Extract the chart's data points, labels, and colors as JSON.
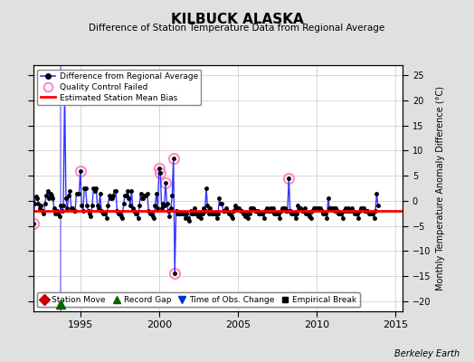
{
  "title": "KILBUCK ALASKA",
  "subtitle": "Difference of Station Temperature Data from Regional Average",
  "ylabel_right": "Monthly Temperature Anomaly Difference (°C)",
  "xlim": [
    1992.0,
    2015.5
  ],
  "ylim": [
    -22,
    27
  ],
  "yticks": [
    -20,
    -15,
    -10,
    -5,
    0,
    5,
    10,
    15,
    20,
    25
  ],
  "xticks": [
    1995,
    2000,
    2005,
    2010,
    2015
  ],
  "fig_bg_color": "#e0e0e0",
  "plot_bg_color": "#ffffff",
  "grid_color": "#c8c8c8",
  "mean_bias": -2.0,
  "credit": "Berkeley Earth",
  "time_series": [
    [
      1992.0,
      -4.5
    ],
    [
      1992.083,
      -0.5
    ],
    [
      1992.167,
      0.8
    ],
    [
      1992.25,
      0.5
    ],
    [
      1992.333,
      -0.5
    ],
    [
      1992.417,
      -1.5
    ],
    [
      1992.5,
      -1.0
    ],
    [
      1992.583,
      -2.0
    ],
    [
      1992.667,
      -2.5
    ],
    [
      1992.75,
      -0.5
    ],
    [
      1992.833,
      1.0
    ],
    [
      1992.917,
      2.0
    ],
    [
      1993.0,
      0.5
    ],
    [
      1993.083,
      1.5
    ],
    [
      1993.167,
      1.0
    ],
    [
      1993.25,
      0.5
    ],
    [
      1993.333,
      -1.5
    ],
    [
      1993.417,
      -2.5
    ],
    [
      1993.5,
      -2.0
    ],
    [
      1993.583,
      -2.5
    ],
    [
      1993.667,
      -3.0
    ],
    [
      1993.75,
      -1.0
    ],
    [
      1993.833,
      -2.0
    ],
    [
      1993.917,
      -1.0
    ],
    [
      1994.0,
      22.0
    ],
    [
      1994.083,
      0.5
    ],
    [
      1994.167,
      -1.5
    ],
    [
      1994.25,
      1.0
    ],
    [
      1994.333,
      2.0
    ],
    [
      1994.417,
      -1.5
    ],
    [
      1994.5,
      -1.5
    ],
    [
      1994.583,
      -2.0
    ],
    [
      1994.667,
      -2.0
    ],
    [
      1994.75,
      1.5
    ],
    [
      1994.833,
      1.5
    ],
    [
      1994.917,
      1.5
    ],
    [
      1995.0,
      6.0
    ],
    [
      1995.083,
      -1.0
    ],
    [
      1995.167,
      -2.0
    ],
    [
      1995.25,
      2.5
    ],
    [
      1995.333,
      2.5
    ],
    [
      1995.417,
      -1.0
    ],
    [
      1995.5,
      -2.0
    ],
    [
      1995.583,
      -2.5
    ],
    [
      1995.667,
      -3.0
    ],
    [
      1995.75,
      -1.0
    ],
    [
      1995.833,
      2.5
    ],
    [
      1995.917,
      2.0
    ],
    [
      1996.0,
      2.5
    ],
    [
      1996.083,
      -1.0
    ],
    [
      1996.167,
      -1.5
    ],
    [
      1996.25,
      1.5
    ],
    [
      1996.333,
      -2.0
    ],
    [
      1996.417,
      -2.5
    ],
    [
      1996.5,
      -2.5
    ],
    [
      1996.583,
      -2.5
    ],
    [
      1996.667,
      -3.5
    ],
    [
      1996.75,
      -1.0
    ],
    [
      1996.833,
      1.0
    ],
    [
      1996.917,
      0.5
    ],
    [
      1997.0,
      0.5
    ],
    [
      1997.083,
      1.0
    ],
    [
      1997.167,
      2.0
    ],
    [
      1997.25,
      2.0
    ],
    [
      1997.333,
      -2.0
    ],
    [
      1997.417,
      -2.5
    ],
    [
      1997.5,
      -2.5
    ],
    [
      1997.583,
      -3.0
    ],
    [
      1997.667,
      -3.5
    ],
    [
      1997.75,
      -0.5
    ],
    [
      1997.833,
      1.0
    ],
    [
      1997.917,
      1.0
    ],
    [
      1998.0,
      2.0
    ],
    [
      1998.083,
      0.5
    ],
    [
      1998.167,
      -1.0
    ],
    [
      1998.25,
      2.0
    ],
    [
      1998.333,
      -1.5
    ],
    [
      1998.417,
      -2.0
    ],
    [
      1998.5,
      -2.5
    ],
    [
      1998.583,
      -2.5
    ],
    [
      1998.667,
      -3.5
    ],
    [
      1998.75,
      -1.0
    ],
    [
      1998.833,
      1.5
    ],
    [
      1998.917,
      0.5
    ],
    [
      1999.0,
      0.5
    ],
    [
      1999.083,
      1.0
    ],
    [
      1999.167,
      1.0
    ],
    [
      1999.25,
      1.5
    ],
    [
      1999.333,
      -2.0
    ],
    [
      1999.417,
      -2.5
    ],
    [
      1999.5,
      -2.5
    ],
    [
      1999.583,
      -3.0
    ],
    [
      1999.667,
      -3.5
    ],
    [
      1999.75,
      -1.0
    ],
    [
      1999.833,
      1.5
    ],
    [
      1999.917,
      -1.5
    ],
    [
      2000.0,
      6.5
    ],
    [
      2000.083,
      5.5
    ],
    [
      2000.167,
      -1.5
    ],
    [
      2000.25,
      -0.5
    ],
    [
      2000.333,
      -1.0
    ],
    [
      2000.417,
      3.5
    ],
    [
      2000.5,
      -0.5
    ],
    [
      2000.583,
      -2.0
    ],
    [
      2000.667,
      -3.0
    ],
    [
      2000.75,
      -1.5
    ],
    [
      2000.833,
      1.0
    ],
    [
      2000.917,
      8.5
    ],
    [
      2001.0,
      -14.5
    ],
    [
      2001.083,
      -2.0
    ],
    [
      2001.167,
      -2.5
    ],
    [
      2001.25,
      -2.5
    ],
    [
      2001.333,
      -2.5
    ],
    [
      2001.417,
      -2.5
    ],
    [
      2001.5,
      -2.5
    ],
    [
      2001.583,
      -2.5
    ],
    [
      2001.667,
      -3.5
    ],
    [
      2001.75,
      -2.5
    ],
    [
      2001.833,
      -3.5
    ],
    [
      2001.917,
      -4.0
    ],
    [
      2002.0,
      -2.0
    ],
    [
      2002.083,
      -2.5
    ],
    [
      2002.167,
      -2.5
    ],
    [
      2002.25,
      -1.5
    ],
    [
      2002.333,
      -2.5
    ],
    [
      2002.417,
      -2.5
    ],
    [
      2002.5,
      -3.0
    ],
    [
      2002.583,
      -2.5
    ],
    [
      2002.667,
      -3.5
    ],
    [
      2002.75,
      -2.5
    ],
    [
      2002.833,
      -1.5
    ],
    [
      2002.917,
      -2.0
    ],
    [
      2003.0,
      2.5
    ],
    [
      2003.083,
      -1.0
    ],
    [
      2003.167,
      -2.5
    ],
    [
      2003.25,
      -1.5
    ],
    [
      2003.333,
      -2.5
    ],
    [
      2003.417,
      -2.5
    ],
    [
      2003.5,
      -2.5
    ],
    [
      2003.583,
      -2.5
    ],
    [
      2003.667,
      -3.5
    ],
    [
      2003.75,
      -2.5
    ],
    [
      2003.833,
      0.5
    ],
    [
      2003.917,
      -0.5
    ],
    [
      2004.0,
      -0.5
    ],
    [
      2004.083,
      -2.0
    ],
    [
      2004.167,
      -2.0
    ],
    [
      2004.25,
      -1.5
    ],
    [
      2004.333,
      -2.0
    ],
    [
      2004.417,
      -2.5
    ],
    [
      2004.5,
      -2.5
    ],
    [
      2004.583,
      -3.0
    ],
    [
      2004.667,
      -3.5
    ],
    [
      2004.75,
      -2.0
    ],
    [
      2004.833,
      -1.0
    ],
    [
      2004.917,
      -1.5
    ],
    [
      2005.0,
      -1.5
    ],
    [
      2005.083,
      -1.5
    ],
    [
      2005.167,
      -2.0
    ],
    [
      2005.25,
      -2.0
    ],
    [
      2005.333,
      -2.5
    ],
    [
      2005.417,
      -2.5
    ],
    [
      2005.5,
      -3.0
    ],
    [
      2005.583,
      -2.5
    ],
    [
      2005.667,
      -3.5
    ],
    [
      2005.75,
      -2.5
    ],
    [
      2005.833,
      -1.5
    ],
    [
      2005.917,
      -1.5
    ],
    [
      2006.0,
      -1.5
    ],
    [
      2006.083,
      -2.0
    ],
    [
      2006.167,
      -2.0
    ],
    [
      2006.25,
      -2.0
    ],
    [
      2006.333,
      -2.5
    ],
    [
      2006.417,
      -2.5
    ],
    [
      2006.5,
      -2.5
    ],
    [
      2006.583,
      -2.5
    ],
    [
      2006.667,
      -3.5
    ],
    [
      2006.75,
      -2.0
    ],
    [
      2006.833,
      -1.5
    ],
    [
      2006.917,
      -2.0
    ],
    [
      2007.0,
      -2.0
    ],
    [
      2007.083,
      -1.5
    ],
    [
      2007.167,
      -2.0
    ],
    [
      2007.25,
      -1.5
    ],
    [
      2007.333,
      -2.5
    ],
    [
      2007.417,
      -2.5
    ],
    [
      2007.5,
      -2.5
    ],
    [
      2007.583,
      -2.5
    ],
    [
      2007.667,
      -3.5
    ],
    [
      2007.75,
      -2.0
    ],
    [
      2007.833,
      -1.5
    ],
    [
      2007.917,
      -1.5
    ],
    [
      2008.0,
      -1.5
    ],
    [
      2008.083,
      -2.0
    ],
    [
      2008.167,
      -2.0
    ],
    [
      2008.25,
      4.5
    ],
    [
      2008.333,
      -2.0
    ],
    [
      2008.417,
      -2.5
    ],
    [
      2008.5,
      -2.5
    ],
    [
      2008.583,
      -2.5
    ],
    [
      2008.667,
      -3.5
    ],
    [
      2008.75,
      -2.5
    ],
    [
      2008.833,
      -1.0
    ],
    [
      2008.917,
      -1.5
    ],
    [
      2009.0,
      -1.5
    ],
    [
      2009.083,
      -2.0
    ],
    [
      2009.167,
      -2.0
    ],
    [
      2009.25,
      -1.5
    ],
    [
      2009.333,
      -2.5
    ],
    [
      2009.417,
      -2.5
    ],
    [
      2009.5,
      -2.5
    ],
    [
      2009.583,
      -3.0
    ],
    [
      2009.667,
      -3.5
    ],
    [
      2009.75,
      -2.0
    ],
    [
      2009.833,
      -1.5
    ],
    [
      2009.917,
      -1.5
    ],
    [
      2010.0,
      -1.5
    ],
    [
      2010.083,
      -1.5
    ],
    [
      2010.167,
      -1.5
    ],
    [
      2010.25,
      -1.5
    ],
    [
      2010.333,
      -2.0
    ],
    [
      2010.417,
      -2.5
    ],
    [
      2010.5,
      -2.5
    ],
    [
      2010.583,
      -2.5
    ],
    [
      2010.667,
      -3.5
    ],
    [
      2010.75,
      0.5
    ],
    [
      2010.833,
      -1.5
    ],
    [
      2010.917,
      -1.5
    ],
    [
      2011.0,
      -1.5
    ],
    [
      2011.083,
      -1.5
    ],
    [
      2011.167,
      -2.0
    ],
    [
      2011.25,
      -1.5
    ],
    [
      2011.333,
      -2.0
    ],
    [
      2011.417,
      -2.5
    ],
    [
      2011.5,
      -2.5
    ],
    [
      2011.583,
      -2.5
    ],
    [
      2011.667,
      -3.5
    ],
    [
      2011.75,
      -2.0
    ],
    [
      2011.833,
      -1.5
    ],
    [
      2011.917,
      -2.0
    ],
    [
      2012.0,
      -1.5
    ],
    [
      2012.083,
      -2.0
    ],
    [
      2012.167,
      -2.0
    ],
    [
      2012.25,
      -1.5
    ],
    [
      2012.333,
      -2.0
    ],
    [
      2012.417,
      -2.5
    ],
    [
      2012.5,
      -2.5
    ],
    [
      2012.583,
      -2.5
    ],
    [
      2012.667,
      -3.5
    ],
    [
      2012.75,
      -2.0
    ],
    [
      2012.833,
      -1.5
    ],
    [
      2012.917,
      -1.5
    ],
    [
      2013.0,
      -1.5
    ],
    [
      2013.083,
      -2.0
    ],
    [
      2013.167,
      -2.0
    ],
    [
      2013.25,
      -2.0
    ],
    [
      2013.333,
      -2.5
    ],
    [
      2013.417,
      -2.5
    ],
    [
      2013.5,
      -2.5
    ],
    [
      2013.583,
      -2.5
    ],
    [
      2013.667,
      -3.5
    ],
    [
      2013.75,
      -2.0
    ],
    [
      2013.833,
      1.5
    ],
    [
      2013.917,
      -1.0
    ]
  ],
  "qc_failed_points": [
    [
      1992.0,
      -4.5
    ],
    [
      1994.0,
      22.0
    ],
    [
      1995.0,
      6.0
    ],
    [
      2000.0,
      6.5
    ],
    [
      2000.083,
      5.5
    ],
    [
      2000.417,
      3.5
    ],
    [
      2000.917,
      8.5
    ],
    [
      2001.0,
      -14.5
    ],
    [
      2008.25,
      4.5
    ]
  ],
  "record_gap_x": 1993.75,
  "record_gap_y": -20.5
}
